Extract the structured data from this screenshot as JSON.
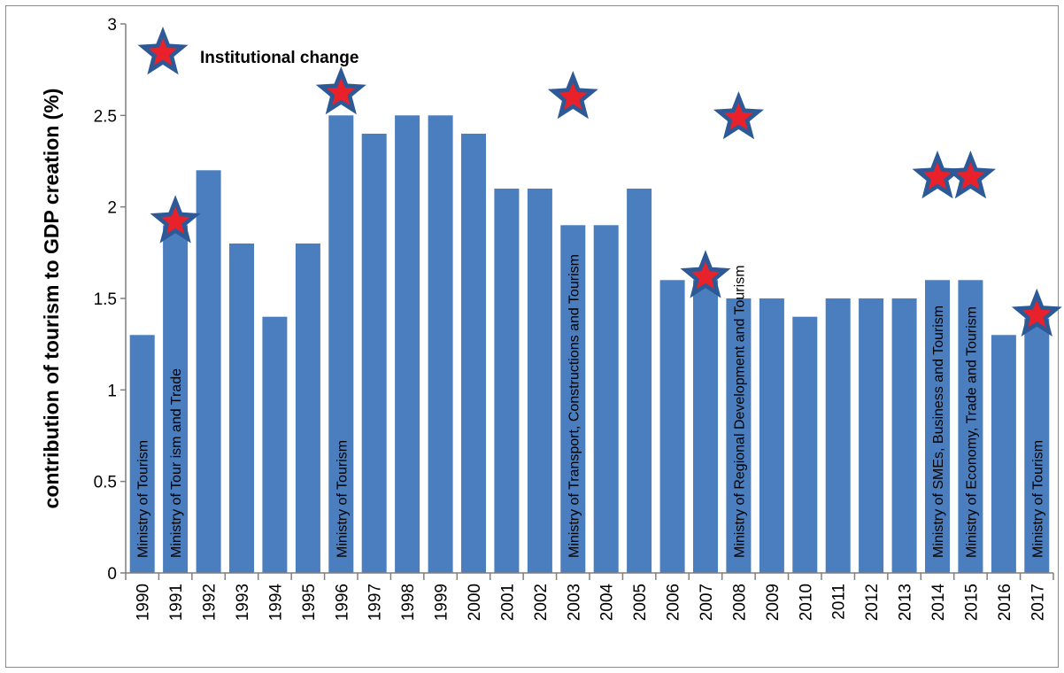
{
  "chart_data": {
    "type": "bar",
    "ylabel": "contribution of tourism to GDP creation (%)",
    "xlabel": "",
    "ylim": [
      0,
      3
    ],
    "yticks": [
      "0",
      "0.5",
      "1",
      "1.5",
      "2",
      "2.5",
      "3"
    ],
    "grid": false,
    "bar_color": "#4a7ebf",
    "categories": [
      "1990",
      "1991",
      "1992",
      "1993",
      "1994",
      "1995",
      "1996",
      "1997",
      "1998",
      "1999",
      "2000",
      "2001",
      "2002",
      "2003",
      "2004",
      "2005",
      "2006",
      "2007",
      "2008",
      "2009",
      "2010",
      "2011",
      "2012",
      "2013",
      "2014",
      "2015",
      "2016",
      "2017"
    ],
    "values": [
      1.3,
      1.9,
      2.2,
      1.8,
      1.4,
      1.8,
      2.5,
      2.4,
      2.5,
      2.5,
      2.4,
      2.1,
      2.1,
      1.9,
      1.9,
      2.1,
      1.6,
      1.6,
      1.5,
      1.5,
      1.4,
      1.5,
      1.5,
      1.5,
      1.6,
      1.6,
      1.3,
      1.39
    ],
    "legend": {
      "label": "Institutional change",
      "position": "top-left",
      "star_fill": "#e8212a",
      "star_outline": "#2d5a97"
    },
    "institutional_changes": [
      {
        "year": "1990",
        "label": "Ministry of Tourism",
        "star": false
      },
      {
        "year": "1991",
        "label": "Ministry of Tour ism and Trade",
        "star": true
      },
      {
        "year": "1996",
        "label": "Ministry of Tourism",
        "star": true
      },
      {
        "year": "2003",
        "label": "Ministry of Transport, Constructions and Tourism",
        "star": true
      },
      {
        "year": "2007",
        "label": "",
        "star": true
      },
      {
        "year": "2008",
        "label": "Ministry of Regional Development and Tourism",
        "star": true
      },
      {
        "year": "2014",
        "label": "Ministry of SMEs, Business and Tourism",
        "star": true
      },
      {
        "year": "2015",
        "label": "Ministry of Economy, Trade and Tourism",
        "star": true
      },
      {
        "year": "2017",
        "label": "Ministry of Tourism",
        "star": true
      }
    ]
  }
}
